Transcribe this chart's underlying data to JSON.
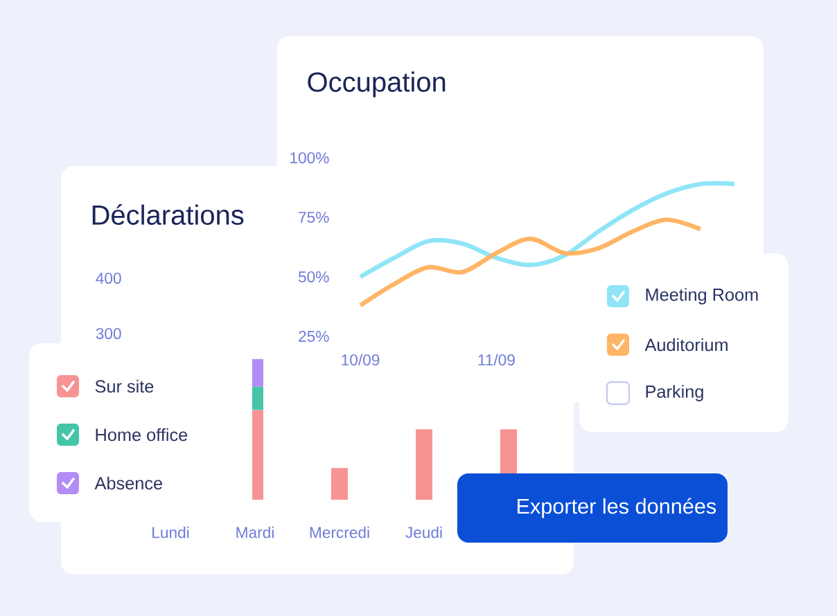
{
  "chart_data": [
    {
      "type": "bar",
      "title": "Déclarations",
      "categories": [
        "Lundi",
        "Mardi",
        "Mercredi",
        "Jeudi",
        null
      ],
      "stacked": true,
      "series": [
        {
          "name": "Sur site",
          "color": "#f79393",
          "values": [
            null,
            162,
            57,
            127,
            127
          ]
        },
        {
          "name": "Home office",
          "color": "#45c4a8",
          "values": [
            null,
            42,
            null,
            null,
            null
          ]
        },
        {
          "name": "Absence",
          "color": "#b48cf5",
          "values": [
            null,
            50,
            null,
            null,
            null
          ]
        }
      ],
      "ylim": [
        0,
        400
      ],
      "yticks": [
        300,
        400
      ],
      "legend": "left",
      "annotations": [
        "Exporter les données"
      ]
    },
    {
      "type": "line",
      "title": "Occupation",
      "categories": [
        "10/09",
        null,
        null,
        null,
        "11/09",
        null,
        null,
        null,
        null,
        null,
        null,
        null
      ],
      "series": [
        {
          "name": "Meeting Room",
          "color": "#8fe5f7",
          "values": [
            50,
            58,
            65,
            64,
            58,
            55,
            59,
            69,
            78,
            85,
            89,
            89
          ]
        },
        {
          "name": "Auditorium",
          "color": "#ffb566",
          "values": [
            38,
            47,
            54,
            52,
            60,
            66,
            60,
            62,
            69,
            74,
            70,
            null
          ]
        },
        {
          "name": "Parking",
          "color": "#c5c9f0",
          "values": [
            null,
            null,
            null,
            null,
            null,
            null,
            null,
            null,
            null,
            null,
            null,
            null
          ]
        }
      ],
      "ylim": [
        25,
        100
      ],
      "yticks": [
        {
          "value": 25,
          "label": "25%"
        },
        {
          "value": 50,
          "label": "50%"
        },
        {
          "value": 75,
          "label": "75%"
        },
        {
          "value": 100,
          "label": "100%"
        }
      ],
      "legend": "right"
    }
  ]
}
